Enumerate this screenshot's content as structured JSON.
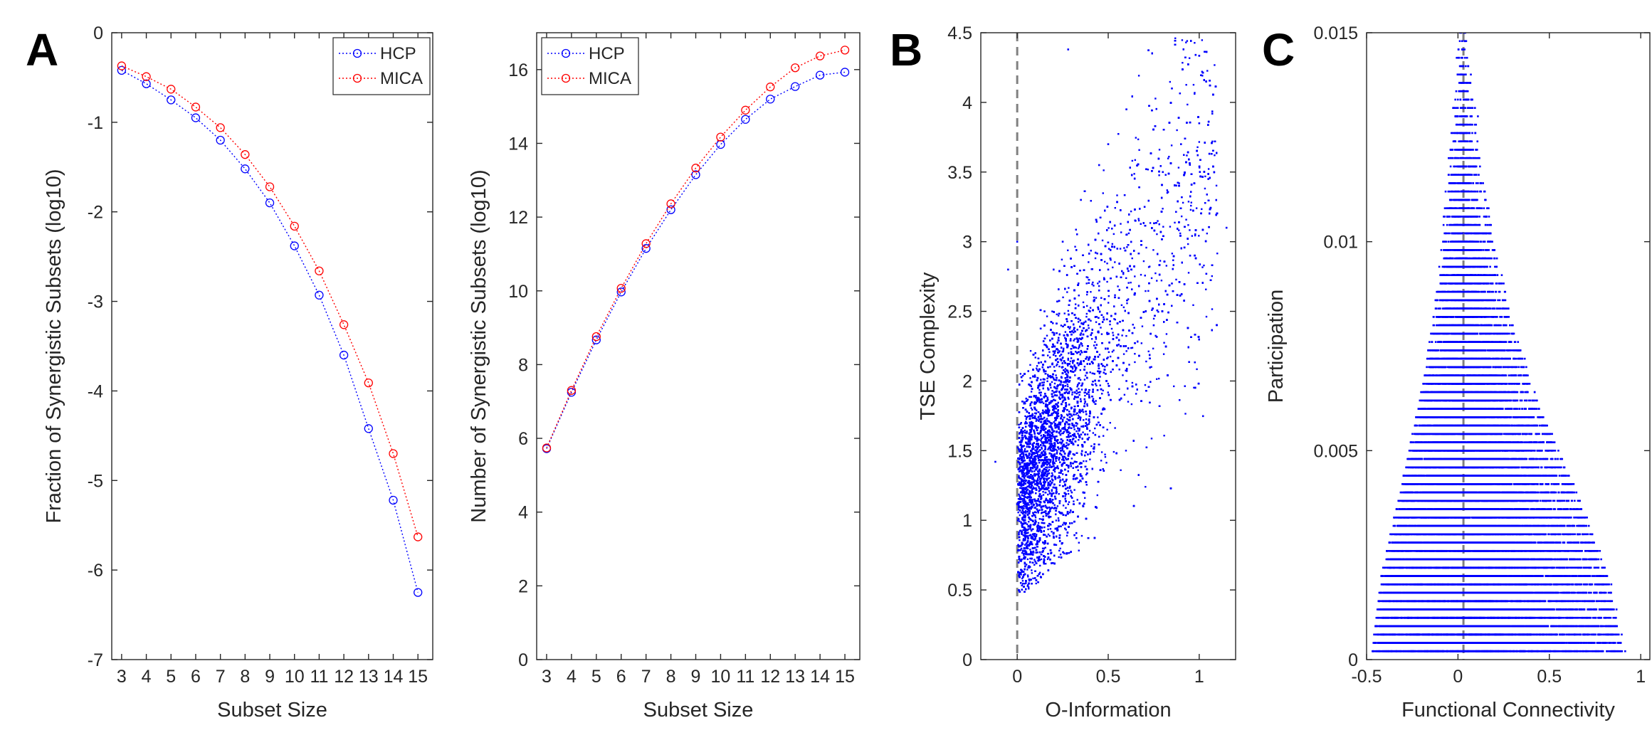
{
  "panel_letters": {
    "A": "A",
    "B": "B",
    "C": "C"
  },
  "chart_data": [
    {
      "id": "A1",
      "type": "line",
      "xlabel": "Subset Size",
      "ylabel": "Fraction of Synergistic Subsets (log10)",
      "xlim": [
        2.6,
        15.6
      ],
      "ylim": [
        -7,
        0
      ],
      "xticks": [
        3,
        4,
        5,
        6,
        7,
        8,
        9,
        10,
        11,
        12,
        13,
        14,
        15
      ],
      "yticks": [
        0,
        -1,
        -2,
        -3,
        -4,
        -5,
        -6,
        -7
      ],
      "legend_position": "top-right",
      "series": [
        {
          "name": "HCP",
          "color": "#0000ff",
          "marker": "circle",
          "line": "dotted",
          "x": [
            3,
            4,
            5,
            6,
            7,
            8,
            9,
            10,
            11,
            12,
            13,
            14,
            15
          ],
          "y": [
            -0.42,
            -0.57,
            -0.75,
            -0.95,
            -1.2,
            -1.52,
            -1.9,
            -2.38,
            -2.93,
            -3.6,
            -4.42,
            -5.22,
            -6.25
          ]
        },
        {
          "name": "MICA",
          "color": "#ff0000",
          "marker": "circle",
          "line": "dotted",
          "x": [
            3,
            4,
            5,
            6,
            7,
            8,
            9,
            10,
            11,
            12,
            13,
            14,
            15
          ],
          "y": [
            -0.37,
            -0.49,
            -0.63,
            -0.83,
            -1.06,
            -1.36,
            -1.72,
            -2.16,
            -2.66,
            -3.26,
            -3.91,
            -4.7,
            -5.63
          ]
        }
      ]
    },
    {
      "id": "A2",
      "type": "line",
      "xlabel": "Subset Size",
      "ylabel": "Number of Synergistic Subsets (log10)",
      "xlim": [
        2.6,
        15.6
      ],
      "ylim": [
        0,
        17
      ],
      "xticks": [
        3,
        4,
        5,
        6,
        7,
        8,
        9,
        10,
        11,
        12,
        13,
        14,
        15
      ],
      "yticks": [
        0,
        2,
        4,
        6,
        8,
        10,
        12,
        14,
        16
      ],
      "legend_position": "top-left",
      "series": [
        {
          "name": "HCP",
          "color": "#0000ff",
          "marker": "circle",
          "line": "dotted",
          "x": [
            3,
            4,
            5,
            6,
            7,
            8,
            9,
            10,
            11,
            12,
            13,
            14,
            15
          ],
          "y": [
            5.72,
            7.25,
            8.67,
            9.97,
            11.15,
            12.2,
            13.15,
            13.97,
            14.65,
            15.2,
            15.54,
            15.85,
            15.93
          ]
        },
        {
          "name": "MICA",
          "color": "#ff0000",
          "marker": "circle",
          "line": "dotted",
          "x": [
            3,
            4,
            5,
            6,
            7,
            8,
            9,
            10,
            11,
            12,
            13,
            14,
            15
          ],
          "y": [
            5.74,
            7.3,
            8.76,
            10.07,
            11.28,
            12.36,
            13.33,
            14.17,
            14.9,
            15.53,
            16.05,
            16.37,
            16.53
          ]
        }
      ]
    },
    {
      "id": "B",
      "type": "scatter",
      "xlabel": "O-Information",
      "ylabel": "TSE Complexity",
      "xlim": [
        -0.2,
        1.2
      ],
      "ylim": [
        0,
        4.5
      ],
      "xticks": [
        0,
        0.5,
        1
      ],
      "yticks": [
        0,
        0.5,
        1,
        1.5,
        2,
        2.5,
        3,
        3.5,
        4,
        4.5
      ],
      "point_color": "#0000ff",
      "reference_line": {
        "axis": "x",
        "value": 0,
        "style": "dashed",
        "color": "#808080"
      },
      "distribution": "dense cloud of ~100000 points; x mostly 0 to 0.8, y rising from ~0.5 to ~3.5, denser near the origin",
      "points": [
        [
          0.02,
          0.55
        ],
        [
          0.05,
          0.8
        ],
        [
          0.1,
          1.0
        ],
        [
          0.15,
          1.3
        ],
        [
          0.2,
          1.6
        ],
        [
          0.25,
          1.85
        ],
        [
          0.3,
          2.1
        ],
        [
          0.35,
          2.3
        ],
        [
          0.4,
          2.5
        ],
        [
          0.45,
          2.65
        ],
        [
          0.5,
          2.8
        ],
        [
          0.55,
          2.95
        ],
        [
          0.6,
          3.05
        ],
        [
          0.65,
          3.15
        ],
        [
          0.7,
          3.25
        ],
        [
          0.8,
          3.5
        ],
        [
          0.9,
          3.7
        ],
        [
          1.0,
          3.85
        ],
        [
          1.05,
          3.45
        ],
        [
          1.15,
          3.1
        ],
        [
          0.28,
          4.38
        ],
        [
          0.85,
          4.1
        ],
        [
          0.6,
          3.95
        ],
        [
          -0.12,
          1.42
        ],
        [
          -0.05,
          2.8
        ],
        [
          0.0,
          3.0
        ],
        [
          0.02,
          1.2
        ],
        [
          0.3,
          1.2
        ],
        [
          0.45,
          1.6
        ],
        [
          0.6,
          2.0
        ],
        [
          0.75,
          2.4
        ],
        [
          0.85,
          2.7
        ],
        [
          0.95,
          2.9
        ],
        [
          0.1,
          2.2
        ],
        [
          0.15,
          2.5
        ],
        [
          0.2,
          2.8
        ],
        [
          0.25,
          3.0
        ],
        [
          0.35,
          3.3
        ],
        [
          0.45,
          3.55
        ],
        [
          0.5,
          3.7
        ]
      ]
    },
    {
      "id": "C",
      "type": "scatter",
      "xlabel": "Functional Connectivity",
      "ylabel": "Participation",
      "xlim": [
        -0.5,
        1.05
      ],
      "ylim": [
        0,
        0.015
      ],
      "xticks": [
        -0.5,
        0,
        0.5,
        1
      ],
      "yticks": [
        0,
        0.005,
        0.01,
        0.015
      ],
      "point_color": "#0000ff",
      "reference_line": {
        "axis": "x",
        "value": 0.03,
        "style": "dashed",
        "color": "#808080"
      },
      "distribution": "points arranged in horizontal bands at discrete participation levels; band width shrinks from about -0.45..0.9 at the bottom to about -0.05..0.1 near the top",
      "band_step": 0.0002,
      "band_extent": [
        {
          "y": 0.0002,
          "xmin": -0.45,
          "xmax": 0.9
        },
        {
          "y": 0.002,
          "xmin": -0.4,
          "xmax": 0.82
        },
        {
          "y": 0.004,
          "xmin": -0.3,
          "xmax": 0.65
        },
        {
          "y": 0.006,
          "xmin": -0.2,
          "xmax": 0.45
        },
        {
          "y": 0.008,
          "xmin": -0.12,
          "xmax": 0.3
        },
        {
          "y": 0.01,
          "xmin": -0.07,
          "xmax": 0.2
        },
        {
          "y": 0.012,
          "xmin": -0.04,
          "xmax": 0.12
        },
        {
          "y": 0.0148,
          "xmin": -0.01,
          "xmax": 0.04
        }
      ]
    }
  ]
}
